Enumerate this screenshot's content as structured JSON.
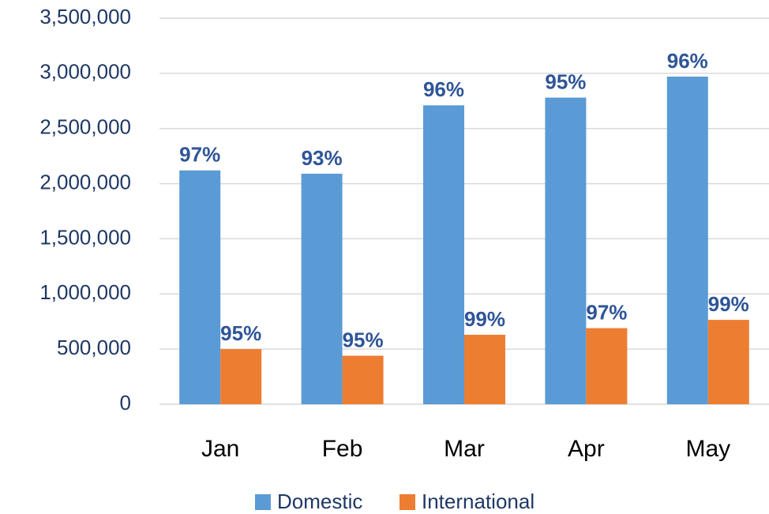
{
  "chart_data": {
    "type": "bar",
    "categories": [
      "Jan",
      "Feb",
      "Mar",
      "Apr",
      "May"
    ],
    "series": [
      {
        "name": "Domestic",
        "color": "#5b9bd5",
        "values": [
          2120000,
          2090000,
          2710000,
          2780000,
          2970000
        ],
        "percent_labels": [
          "97%",
          "93%",
          "96%",
          "95%",
          "96%"
        ]
      },
      {
        "name": "International",
        "color": "#ed7d31",
        "values": [
          500000,
          440000,
          630000,
          690000,
          765000
        ],
        "percent_labels": [
          "95%",
          "95%",
          "99%",
          "97%",
          "99%"
        ]
      }
    ],
    "ylim": [
      0,
      3500000
    ],
    "yticks": [
      0,
      {
        "value": 500000,
        "label": "500,000"
      },
      {
        "value": 1000000,
        "label": "1,000,000"
      },
      {
        "value": 1500000,
        "label": "1,500,000"
      },
      {
        "value": 2000000,
        "label": "2,000,000"
      },
      {
        "value": 2500000,
        "label": "2,500,000"
      },
      {
        "value": 3000000,
        "label": "3,000,000"
      },
      {
        "value": 3500000,
        "label": "3,500,000"
      }
    ],
    "grid": true,
    "legend": "bottom"
  }
}
